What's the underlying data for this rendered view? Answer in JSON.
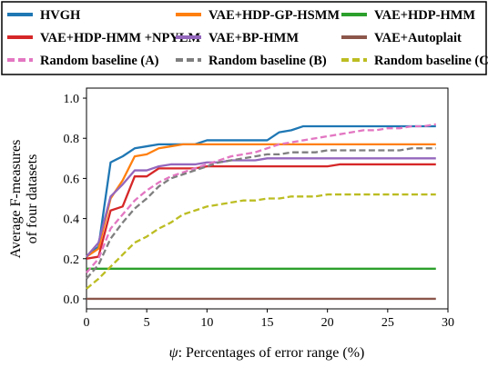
{
  "chart_data": {
    "type": "line",
    "xlabel_symbol": "ψ",
    "xlabel": ": Percentages of error range (%)",
    "ylabel_lines": [
      "Average F-measures",
      "of four datasets"
    ],
    "xlim": [
      0,
      30
    ],
    "ylim": [
      -0.05,
      1.05
    ],
    "xticks": [
      0,
      5,
      10,
      15,
      20,
      25,
      30
    ],
    "yticks": [
      0.0,
      0.2,
      0.4,
      0.6,
      0.8,
      1.0
    ],
    "xtick_labels": [
      "0",
      "5",
      "10",
      "15",
      "20",
      "25",
      "30"
    ],
    "ytick_labels": [
      "0.0",
      "0.2",
      "0.4",
      "0.6",
      "0.8",
      "1.0"
    ],
    "grid": false,
    "legend_placement": "top",
    "x": [
      0,
      1,
      2,
      3,
      4,
      5,
      6,
      7,
      8,
      9,
      10,
      11,
      12,
      13,
      14,
      15,
      16,
      17,
      18,
      19,
      20,
      21,
      22,
      23,
      24,
      25,
      26,
      27,
      28,
      29
    ],
    "series": [
      {
        "name": "HVGH",
        "color": "#1f77b4",
        "dash": "solid",
        "values": [
          0.21,
          0.26,
          0.68,
          0.71,
          0.75,
          0.76,
          0.77,
          0.77,
          0.77,
          0.77,
          0.79,
          0.79,
          0.79,
          0.79,
          0.79,
          0.79,
          0.83,
          0.84,
          0.86,
          0.86,
          0.86,
          0.86,
          0.86,
          0.86,
          0.86,
          0.86,
          0.86,
          0.86,
          0.86,
          0.86
        ]
      },
      {
        "name": "VAE+HDP-GP-HSMM",
        "color": "#ff7f0e",
        "dash": "solid",
        "values": [
          0.21,
          0.25,
          0.5,
          0.59,
          0.71,
          0.72,
          0.75,
          0.76,
          0.77,
          0.77,
          0.77,
          0.77,
          0.77,
          0.77,
          0.77,
          0.77,
          0.77,
          0.77,
          0.77,
          0.77,
          0.77,
          0.77,
          0.77,
          0.77,
          0.77,
          0.77,
          0.77,
          0.77,
          0.77,
          0.77
        ]
      },
      {
        "name": "VAE+HDP-HMM",
        "color": "#2ca02c",
        "dash": "solid",
        "values": [
          0.15,
          0.15,
          0.15,
          0.15,
          0.15,
          0.15,
          0.15,
          0.15,
          0.15,
          0.15,
          0.15,
          0.15,
          0.15,
          0.15,
          0.15,
          0.15,
          0.15,
          0.15,
          0.15,
          0.15,
          0.15,
          0.15,
          0.15,
          0.15,
          0.15,
          0.15,
          0.15,
          0.15,
          0.15,
          0.15
        ]
      },
      {
        "name": "VAE+HDP-HMM +NPYLM",
        "color": "#d62728",
        "dash": "solid",
        "values": [
          0.2,
          0.21,
          0.44,
          0.46,
          0.61,
          0.61,
          0.65,
          0.65,
          0.65,
          0.65,
          0.66,
          0.66,
          0.66,
          0.66,
          0.66,
          0.66,
          0.66,
          0.66,
          0.66,
          0.66,
          0.66,
          0.67,
          0.67,
          0.67,
          0.67,
          0.67,
          0.67,
          0.67,
          0.67,
          0.67
        ]
      },
      {
        "name": "VAE+BP-HMM",
        "color": "#9467bd",
        "dash": "solid",
        "values": [
          0.21,
          0.28,
          0.51,
          0.57,
          0.64,
          0.64,
          0.66,
          0.67,
          0.67,
          0.67,
          0.68,
          0.68,
          0.69,
          0.69,
          0.69,
          0.7,
          0.7,
          0.7,
          0.7,
          0.7,
          0.7,
          0.7,
          0.7,
          0.7,
          0.7,
          0.7,
          0.7,
          0.7,
          0.7,
          0.7
        ]
      },
      {
        "name": "VAE+Autoplait",
        "color": "#8c564b",
        "dash": "solid",
        "values": [
          0,
          0,
          0,
          0,
          0,
          0,
          0,
          0,
          0,
          0,
          0,
          0,
          0,
          0,
          0,
          0,
          0,
          0,
          0,
          0,
          0,
          0,
          0,
          0,
          0,
          0,
          0,
          0,
          0,
          0
        ]
      },
      {
        "name": "Random baseline (A)",
        "color": "#e377c2",
        "dash": "dashed",
        "values": [
          0.13,
          0.2,
          0.35,
          0.42,
          0.49,
          0.54,
          0.58,
          0.61,
          0.63,
          0.65,
          0.67,
          0.69,
          0.71,
          0.72,
          0.73,
          0.75,
          0.77,
          0.78,
          0.79,
          0.8,
          0.81,
          0.82,
          0.83,
          0.84,
          0.84,
          0.85,
          0.85,
          0.86,
          0.86,
          0.87
        ]
      },
      {
        "name": "Random baseline (B)",
        "color": "#7f7f7f",
        "dash": "dashed",
        "values": [
          0.1,
          0.17,
          0.3,
          0.38,
          0.45,
          0.5,
          0.56,
          0.6,
          0.62,
          0.64,
          0.66,
          0.68,
          0.69,
          0.7,
          0.71,
          0.72,
          0.72,
          0.73,
          0.73,
          0.73,
          0.74,
          0.74,
          0.74,
          0.74,
          0.74,
          0.74,
          0.74,
          0.75,
          0.75,
          0.75
        ]
      },
      {
        "name": "Random baseline (C)",
        "color": "#bcbd22",
        "dash": "dashed",
        "values": [
          0.05,
          0.1,
          0.16,
          0.22,
          0.28,
          0.31,
          0.35,
          0.38,
          0.42,
          0.44,
          0.46,
          0.47,
          0.48,
          0.49,
          0.49,
          0.5,
          0.5,
          0.51,
          0.51,
          0.51,
          0.52,
          0.52,
          0.52,
          0.52,
          0.52,
          0.52,
          0.52,
          0.52,
          0.52,
          0.52
        ]
      }
    ]
  }
}
